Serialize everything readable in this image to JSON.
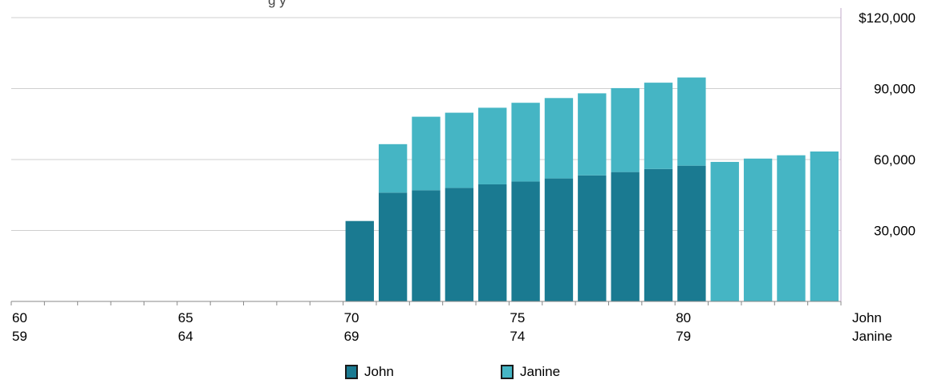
{
  "chart_data": {
    "type": "bar",
    "stacked": true,
    "title": "",
    "x_age_john": [
      60,
      61,
      62,
      63,
      64,
      65,
      66,
      67,
      68,
      69,
      70,
      71,
      72,
      73,
      74,
      75,
      76,
      77,
      78,
      79,
      80,
      81,
      82,
      83,
      84
    ],
    "x_age_janine": [
      59,
      60,
      61,
      62,
      63,
      64,
      65,
      66,
      67,
      68,
      69,
      70,
      71,
      72,
      73,
      74,
      75,
      76,
      77,
      78,
      79,
      80,
      81,
      82,
      83
    ],
    "series": [
      {
        "name": "John",
        "color": "#1a7a91",
        "values": [
          0,
          0,
          0,
          0,
          0,
          0,
          0,
          0,
          0,
          0,
          34000,
          46000,
          47000,
          48000,
          49500,
          50700,
          52000,
          53300,
          54700,
          56000,
          57400,
          0,
          0,
          0,
          0
        ]
      },
      {
        "name": "Janine",
        "color": "#45b5c4",
        "values": [
          0,
          0,
          0,
          0,
          0,
          0,
          0,
          0,
          0,
          0,
          0,
          20500,
          31100,
          31800,
          32400,
          33300,
          34000,
          34700,
          35500,
          36500,
          37300,
          59000,
          60400,
          61800,
          63400
        ]
      }
    ],
    "ylim": [
      0,
      120000
    ],
    "y_ticks": [
      {
        "value": 120000,
        "label": "$120,000"
      },
      {
        "value": 90000,
        "label": "90,000"
      },
      {
        "value": 60000,
        "label": "60,000"
      },
      {
        "value": 30000,
        "label": "30,000"
      }
    ],
    "x_ticks": [
      {
        "index": 0,
        "john": "60",
        "janine": "59"
      },
      {
        "index": 5,
        "john": "65",
        "janine": "64"
      },
      {
        "index": 10,
        "john": "70",
        "janine": "69"
      },
      {
        "index": 15,
        "john": "75",
        "janine": "74"
      },
      {
        "index": 20,
        "john": "80",
        "janine": "79"
      }
    ],
    "row_labels": {
      "john": "John",
      "janine": "Janine"
    },
    "grid": true,
    "legend_position": "bottom-center"
  },
  "legend": [
    {
      "label": "John",
      "color": "#1a7a91"
    },
    {
      "label": "Janine",
      "color": "#45b5c4"
    }
  ],
  "header_fragment": "g y"
}
